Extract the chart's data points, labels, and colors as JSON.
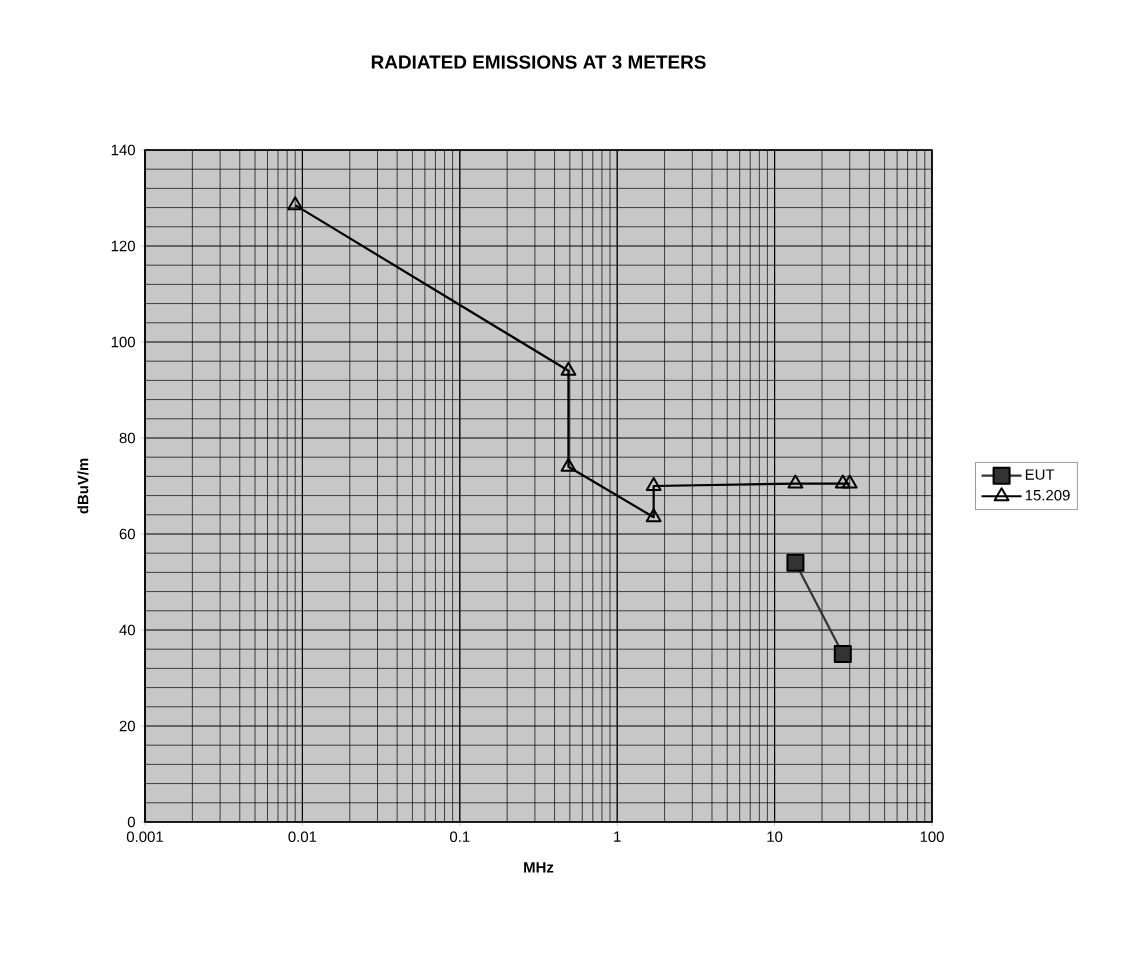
{
  "chart_data": {
    "type": "line",
    "title": "RADIATED EMISSIONS AT 3 METERS",
    "xlabel": "MHz",
    "ylabel": "dBuV/m",
    "log": "x",
    "xlim": [
      0.001,
      100
    ],
    "xticks": [
      0.001,
      0.01,
      0.1,
      1,
      10,
      100
    ],
    "ylim": [
      0,
      140
    ],
    "yticks": [
      0,
      20,
      40,
      60,
      80,
      100,
      120,
      140
    ],
    "grid": true,
    "legend": "right",
    "series": [
      {
        "name": "EUT",
        "color": "#333333",
        "marker": "square",
        "x": [
          13.56,
          27.12
        ],
        "values": [
          54,
          35
        ]
      },
      {
        "name": "15.209",
        "color": "#000000",
        "marker": "triangle",
        "x": [
          0.009,
          0.49,
          0.49,
          1.705,
          1.705,
          13.56,
          27.12,
          30
        ],
        "values": [
          128.5,
          94,
          74,
          63.5,
          70,
          70.5,
          70.5,
          70.5
        ]
      }
    ]
  }
}
